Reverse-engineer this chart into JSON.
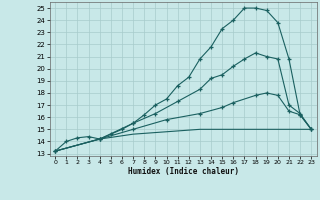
{
  "xlabel": "Humidex (Indice chaleur)",
  "bg_color": "#c8e8e8",
  "grid_color": "#a8cccc",
  "line_color": "#1a6060",
  "xlim": [
    -0.5,
    23.5
  ],
  "ylim": [
    12.8,
    25.5
  ],
  "xticks": [
    0,
    1,
    2,
    3,
    4,
    5,
    6,
    7,
    8,
    9,
    10,
    11,
    12,
    13,
    14,
    15,
    16,
    17,
    18,
    19,
    20,
    21,
    22,
    23
  ],
  "yticks": [
    13,
    14,
    15,
    16,
    17,
    18,
    19,
    20,
    21,
    22,
    23,
    24,
    25
  ],
  "curve1_x": [
    0,
    1,
    2,
    3,
    4,
    5,
    6,
    7,
    8,
    9,
    10,
    11,
    12,
    13,
    14,
    15,
    16,
    17,
    18,
    19,
    20,
    21,
    22,
    23
  ],
  "curve1_y": [
    13.2,
    14.0,
    14.3,
    14.4,
    14.2,
    14.6,
    15.0,
    15.5,
    16.2,
    17.0,
    17.5,
    18.6,
    19.3,
    20.8,
    21.8,
    23.3,
    24.0,
    25.0,
    25.0,
    24.8,
    23.8,
    20.8,
    16.2,
    15.0
  ],
  "curve2_x": [
    0,
    4,
    7,
    9,
    11,
    13,
    14,
    15,
    16,
    17,
    18,
    19,
    20,
    21,
    22,
    23
  ],
  "curve2_y": [
    13.2,
    14.2,
    15.5,
    16.3,
    17.3,
    18.3,
    19.2,
    19.5,
    20.2,
    20.8,
    21.3,
    21.0,
    20.8,
    17.0,
    16.3,
    15.0
  ],
  "curve3_x": [
    0,
    4,
    7,
    10,
    13,
    15,
    16,
    18,
    19,
    20,
    21,
    22,
    23
  ],
  "curve3_y": [
    13.2,
    14.2,
    15.0,
    15.8,
    16.3,
    16.8,
    17.2,
    17.8,
    18.0,
    17.8,
    16.5,
    16.2,
    15.0
  ],
  "curve4_x": [
    0,
    4,
    7,
    10,
    13,
    16,
    18,
    19,
    20,
    21,
    22,
    23
  ],
  "curve4_y": [
    13.2,
    14.2,
    14.6,
    14.8,
    15.0,
    15.0,
    15.0,
    15.0,
    15.0,
    15.0,
    15.0,
    15.0
  ]
}
